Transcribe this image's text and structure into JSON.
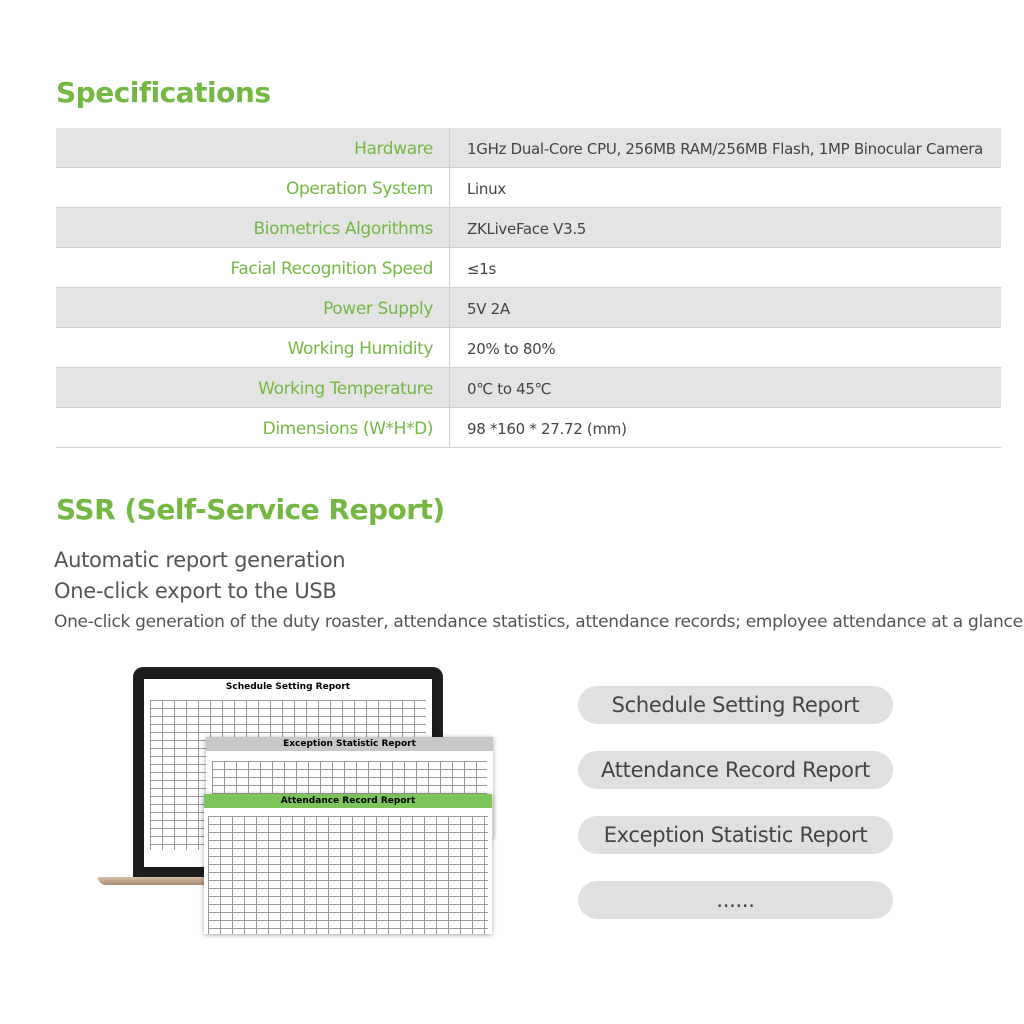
{
  "header": {
    "title": "Specifications"
  },
  "table": {
    "rows": [
      [
        "Hardware",
        "1GHz Dual-Core CPU, 256MB RAM/256MB Flash, 1MP Binocular Camera"
      ],
      [
        "Operation System",
        "Linux"
      ],
      [
        "Biometrics Algorithms",
        "ZKLiveFace V3.5"
      ],
      [
        "Facial Recognition Speed",
        "≤1s"
      ],
      [
        "Power Supply",
        "5V 2A"
      ],
      [
        "Working Humidity",
        "20% to 80%"
      ],
      [
        "Working Temperature",
        "0℃ to 45℃"
      ],
      [
        "Dimensions (W*H*D)",
        "98 *160 * 27.72 (mm)"
      ]
    ]
  },
  "section": {
    "title": "SSR (Self-Service Report)",
    "lines": [
      "Automatic report generation",
      "One-click export to the USB",
      "One-click generation of the duty roaster, attendance statistics, attendance records; employee attendance at a glance."
    ]
  },
  "illustration": {
    "reports": [
      "Schedule Setting Report",
      "Exception Statistic Report",
      "Attendance Record Report"
    ]
  },
  "buttons": [
    "Schedule Setting Report",
    "Attendance Record Report",
    "Exception Statistic Report",
    "......"
  ]
}
